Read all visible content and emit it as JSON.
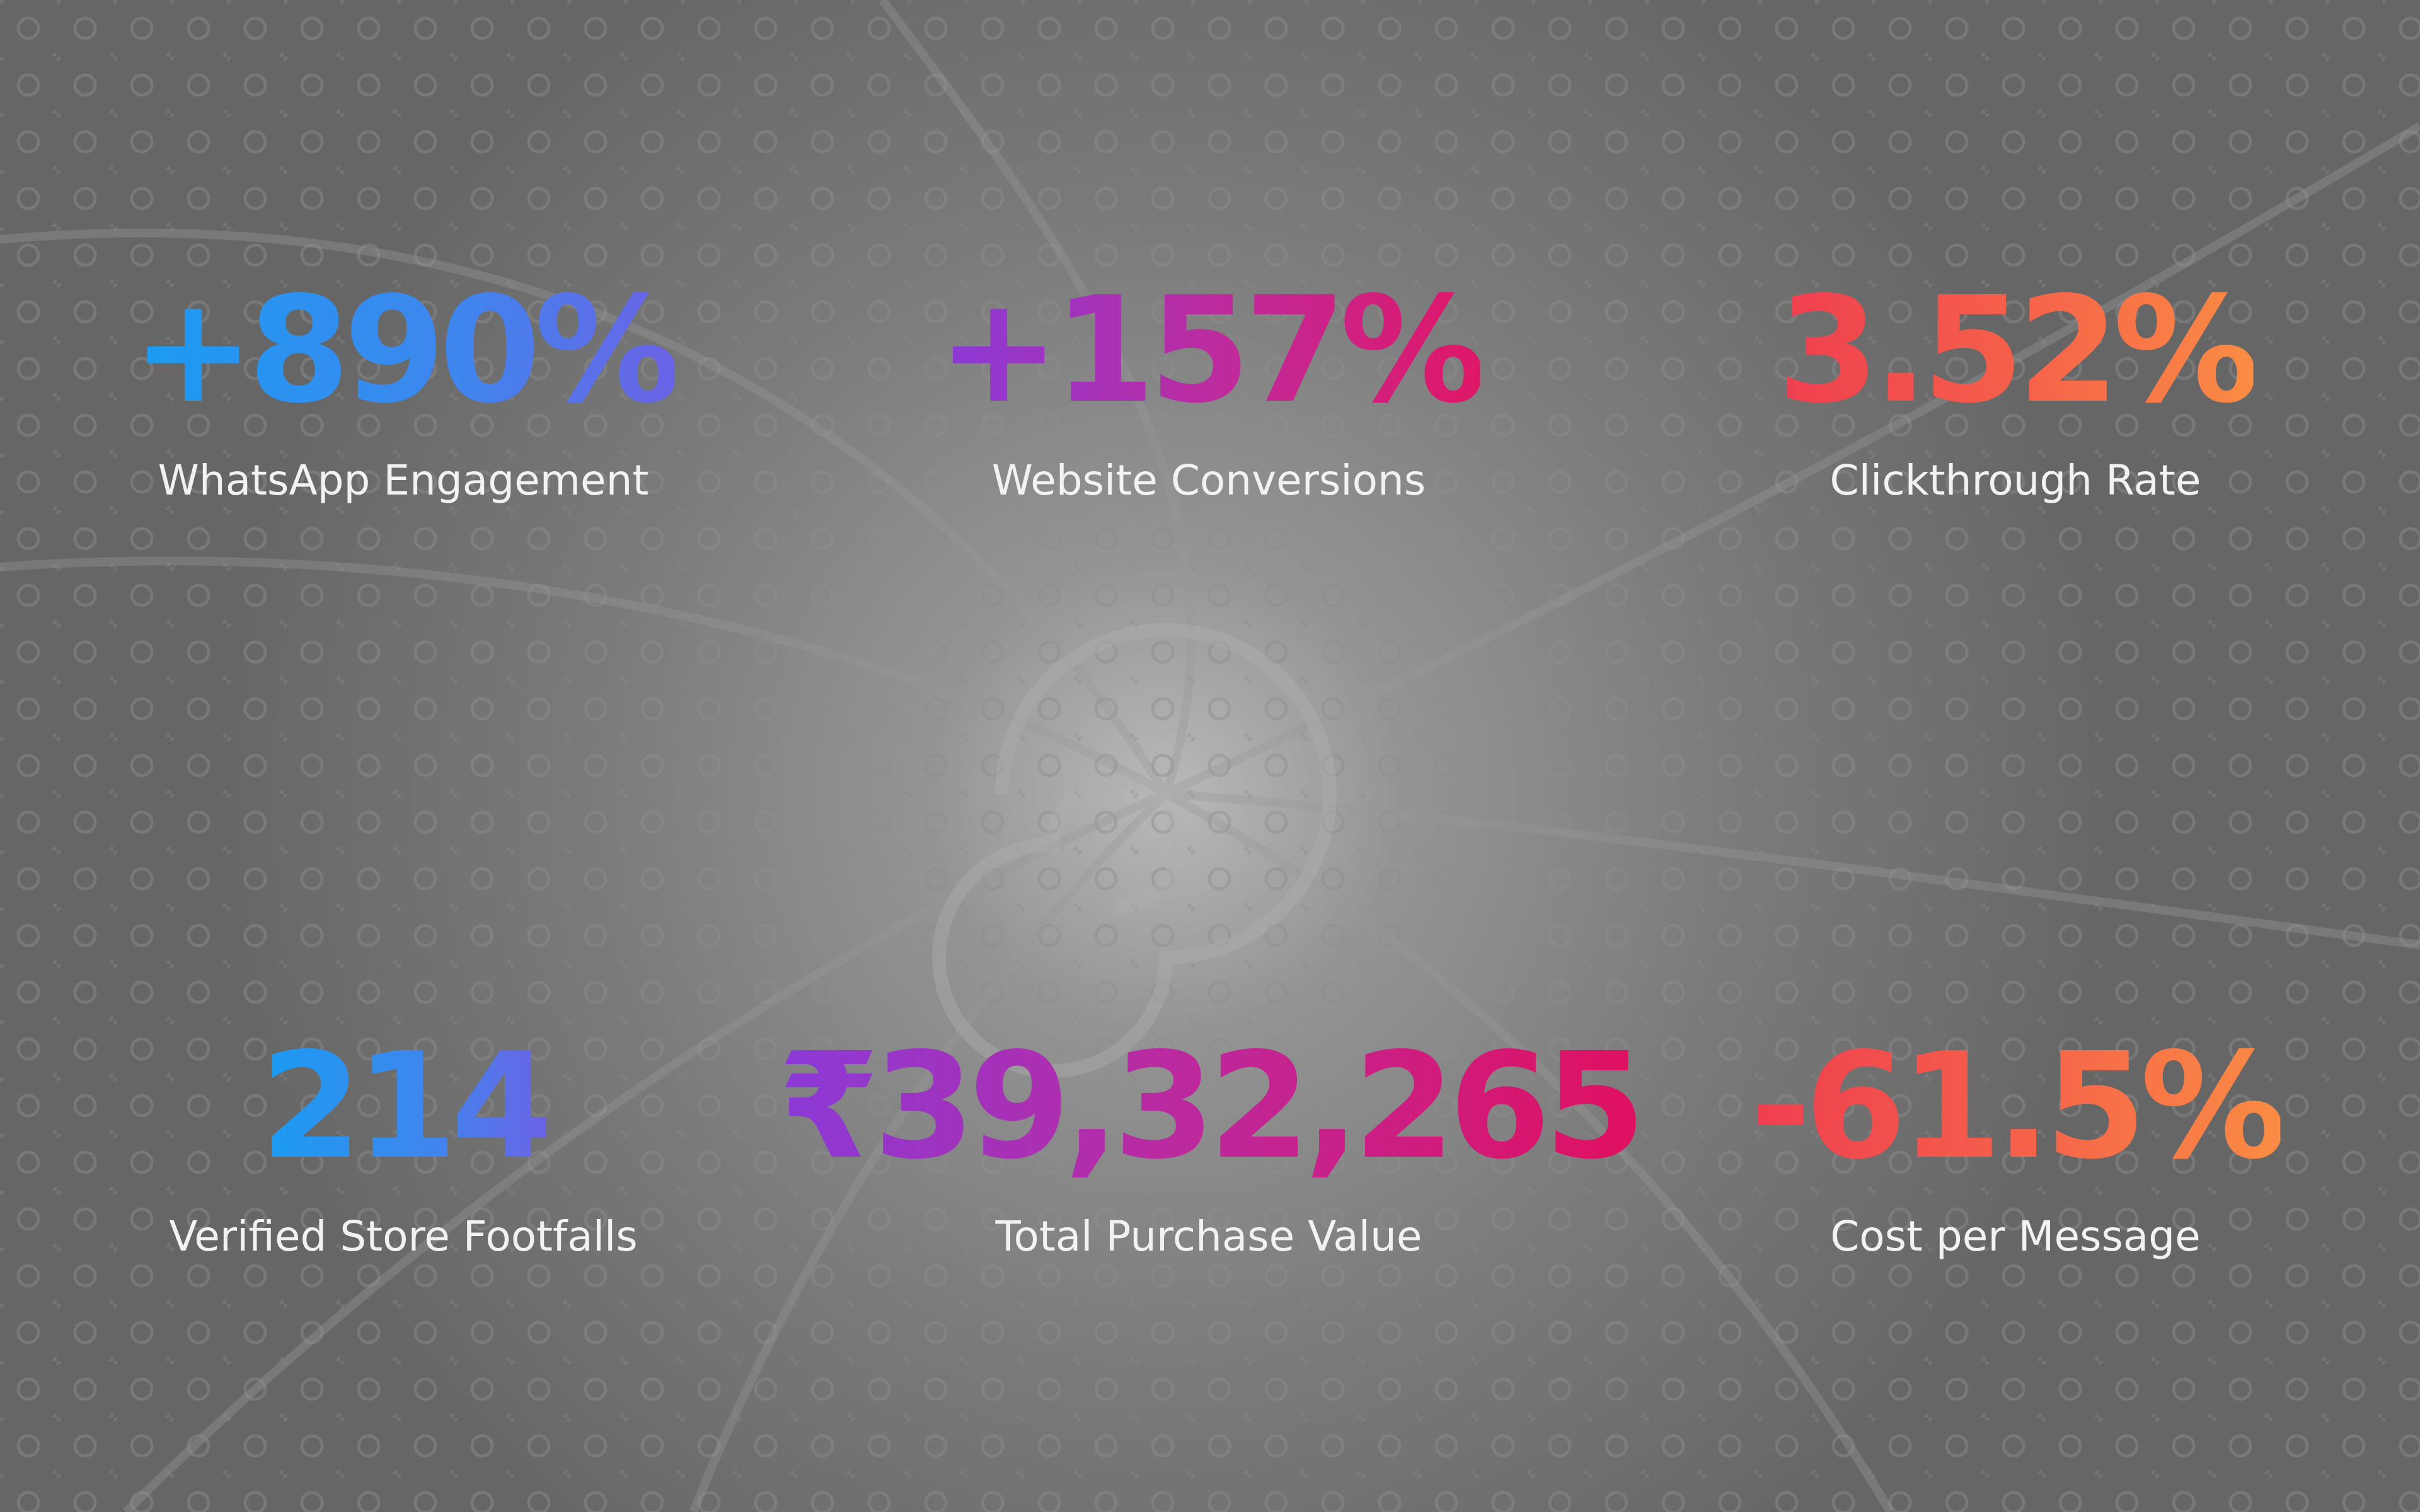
{
  "stats": [
    {
      "value": "+890%",
      "label": "WhatsApp Engagement"
    },
    {
      "value": "+157%",
      "label": "Website Conversions"
    },
    {
      "value": "3.52%",
      "label": "Clickthrough Rate"
    },
    {
      "value": "214",
      "label": "Verified Store Footfalls"
    },
    {
      "value": "₹39,32,265",
      "label": "Total Purchase Value"
    },
    {
      "value": "-61.5%",
      "label": "Cost per Message"
    }
  ],
  "colors": {
    "background": "#7a7a7a",
    "label_text": "#f2f2f2",
    "blue": "#1a9cf2",
    "violet": "#8a3ad8",
    "magenta": "#e01767",
    "coral": "#ef3e50",
    "orange": "#fa8c44"
  }
}
